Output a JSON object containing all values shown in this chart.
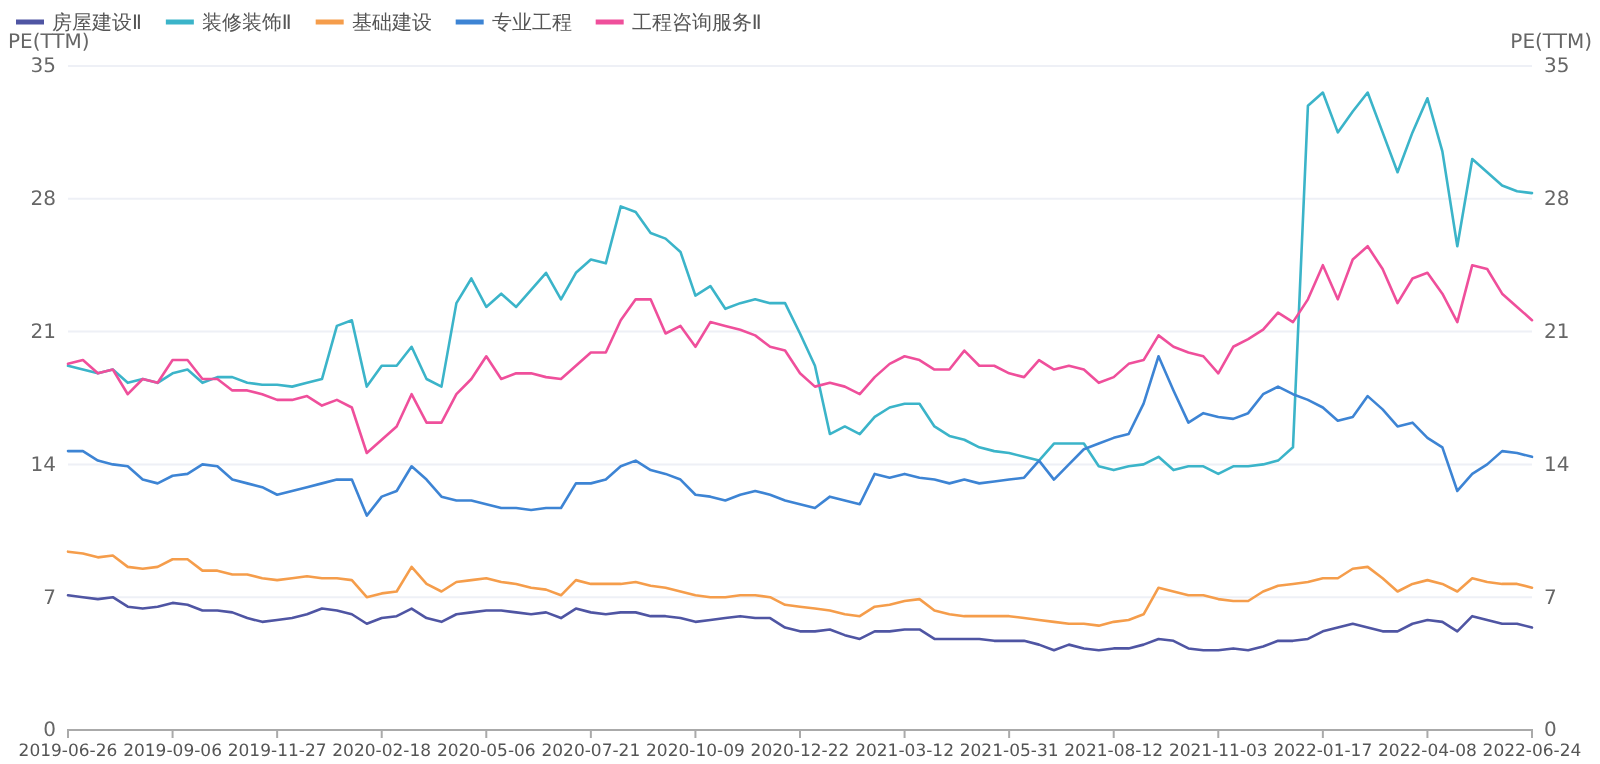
{
  "chart_data": {
    "type": "line",
    "ylabel": "PE(TTM)",
    "y2label": "PE(TTM)",
    "categories": [
      "2019-06-26",
      null,
      null,
      null,
      null,
      null,
      null,
      "2019-09-06",
      null,
      null,
      null,
      null,
      null,
      null,
      "2019-11-27",
      null,
      null,
      null,
      null,
      null,
      null,
      "2020-02-18",
      null,
      null,
      null,
      null,
      null,
      null,
      "2020-05-06",
      null,
      null,
      null,
      null,
      null,
      null,
      "2020-07-21",
      null,
      null,
      null,
      null,
      null,
      null,
      "2020-10-09",
      null,
      null,
      null,
      null,
      null,
      null,
      "2020-12-22",
      null,
      null,
      null,
      null,
      null,
      null,
      "2021-03-12",
      null,
      null,
      null,
      null,
      null,
      null,
      "2021-05-31",
      null,
      null,
      null,
      null,
      null,
      null,
      "2021-08-12",
      null,
      null,
      null,
      null,
      null,
      null,
      "2021-11-03",
      null,
      null,
      null,
      null,
      null,
      null,
      "2022-01-17",
      null,
      null,
      null,
      null,
      null,
      null,
      "2022-04-08",
      null,
      null,
      null,
      null,
      null,
      null,
      "2022-06-24"
    ],
    "ylim": [
      0,
      35
    ],
    "yticks": [
      0,
      7,
      14,
      21,
      28,
      35
    ],
    "y2lim": [
      0,
      35
    ],
    "y2ticks": [
      0,
      7,
      14,
      21,
      28,
      35
    ],
    "grid": "y",
    "legend": "top left",
    "marker": "none",
    "line_style": "solid",
    "series": [
      {
        "name": "房屋建设Ⅱ",
        "color": "#4f55a3",
        "values": [
          7.1,
          7.0,
          6.9,
          7.0,
          6.5,
          6.4,
          6.5,
          6.7,
          6.6,
          6.3,
          6.3,
          6.2,
          5.9,
          5.7,
          5.8,
          5.9,
          6.1,
          6.4,
          6.3,
          6.1,
          5.6,
          5.9,
          6.0,
          6.4,
          5.9,
          5.7,
          6.1,
          6.2,
          6.3,
          6.3,
          6.2,
          6.1,
          6.2,
          5.9,
          6.4,
          6.2,
          6.1,
          6.2,
          6.2,
          6.0,
          6.0,
          5.9,
          5.7,
          5.8,
          5.9,
          6.0,
          5.9,
          5.9,
          5.4,
          5.2,
          5.2,
          5.3,
          5.0,
          4.8,
          5.2,
          5.2,
          5.3,
          5.3,
          4.8,
          4.8,
          4.8,
          4.8,
          4.7,
          4.7,
          4.7,
          4.5,
          4.2,
          4.5,
          4.3,
          4.2,
          4.3,
          4.3,
          4.5,
          4.8,
          4.7,
          4.3,
          4.2,
          4.2,
          4.3,
          4.2,
          4.4,
          4.7,
          4.7,
          4.8,
          5.2,
          5.4,
          5.6,
          5.4,
          5.2,
          5.2,
          5.6,
          5.8,
          5.7,
          5.2,
          6.0,
          5.8,
          5.6,
          5.6,
          5.4
        ]
      },
      {
        "name": "装修装饰Ⅱ",
        "color": "#3bb4c9",
        "values": [
          19.2,
          19.0,
          18.8,
          19.0,
          18.3,
          18.5,
          18.3,
          18.8,
          19.0,
          18.3,
          18.6,
          18.6,
          18.3,
          18.2,
          18.2,
          18.1,
          18.3,
          18.5,
          21.3,
          21.6,
          18.1,
          19.2,
          19.2,
          20.2,
          18.5,
          18.1,
          22.5,
          23.8,
          22.3,
          23.0,
          22.3,
          23.2,
          24.1,
          22.7,
          24.1,
          24.8,
          24.6,
          27.6,
          27.3,
          26.2,
          25.9,
          25.2,
          22.9,
          23.4,
          22.2,
          22.5,
          22.7,
          22.5,
          22.5,
          20.9,
          19.2,
          15.6,
          16.0,
          15.6,
          16.5,
          17.0,
          17.2,
          17.2,
          16.0,
          15.5,
          15.3,
          14.9,
          14.7,
          14.6,
          14.4,
          14.2,
          15.1,
          15.1,
          15.1,
          13.9,
          13.7,
          13.9,
          14.0,
          14.4,
          13.7,
          13.9,
          13.9,
          13.5,
          13.9,
          13.9,
          14.0,
          14.2,
          14.9,
          32.9,
          33.6,
          31.5,
          32.6,
          33.6,
          31.5,
          29.4,
          31.5,
          33.3,
          30.5,
          25.5,
          30.1,
          29.4,
          28.7,
          28.4,
          28.3
        ]
      },
      {
        "name": "基础建设",
        "color": "#f59d4b",
        "values": [
          9.4,
          9.3,
          9.1,
          9.2,
          8.6,
          8.5,
          8.6,
          9.0,
          9.0,
          8.4,
          8.4,
          8.2,
          8.2,
          8.0,
          7.9,
          8.0,
          8.1,
          8.0,
          8.0,
          7.9,
          7.0,
          7.2,
          7.3,
          8.6,
          7.7,
          7.3,
          7.8,
          7.9,
          8.0,
          7.8,
          7.7,
          7.5,
          7.4,
          7.1,
          7.9,
          7.7,
          7.7,
          7.7,
          7.8,
          7.6,
          7.5,
          7.3,
          7.1,
          7.0,
          7.0,
          7.1,
          7.1,
          7.0,
          6.6,
          6.5,
          6.4,
          6.3,
          6.1,
          6.0,
          6.5,
          6.6,
          6.8,
          6.9,
          6.3,
          6.1,
          6.0,
          6.0,
          6.0,
          6.0,
          5.9,
          5.8,
          5.7,
          5.6,
          5.6,
          5.5,
          5.7,
          5.8,
          6.1,
          7.5,
          7.3,
          7.1,
          7.1,
          6.9,
          6.8,
          6.8,
          7.3,
          7.6,
          7.7,
          7.8,
          8.0,
          8.0,
          8.5,
          8.6,
          8.0,
          7.3,
          7.7,
          7.9,
          7.7,
          7.3,
          8.0,
          7.8,
          7.7,
          7.7,
          7.5
        ]
      },
      {
        "name": "专业工程",
        "color": "#3d84d4",
        "values": [
          14.7,
          14.7,
          14.2,
          14.0,
          13.9,
          13.2,
          13.0,
          13.4,
          13.5,
          14.0,
          13.9,
          13.2,
          13.0,
          12.8,
          12.4,
          12.6,
          12.8,
          13.0,
          13.2,
          13.2,
          11.3,
          12.3,
          12.6,
          13.9,
          13.2,
          12.3,
          12.1,
          12.1,
          11.9,
          11.7,
          11.7,
          11.6,
          11.7,
          11.7,
          13.0,
          13.0,
          13.2,
          13.9,
          14.2,
          13.7,
          13.5,
          13.2,
          12.4,
          12.3,
          12.1,
          12.4,
          12.6,
          12.4,
          12.1,
          11.9,
          11.7,
          12.3,
          12.1,
          11.9,
          13.5,
          13.3,
          13.5,
          13.3,
          13.2,
          13.0,
          13.2,
          13.0,
          13.1,
          13.2,
          13.3,
          14.2,
          13.2,
          14.0,
          14.8,
          15.1,
          15.4,
          15.6,
          17.2,
          19.7,
          17.9,
          16.2,
          16.7,
          16.5,
          16.4,
          16.7,
          17.7,
          18.1,
          17.7,
          17.4,
          17.0,
          16.3,
          16.5,
          17.6,
          16.9,
          16.0,
          16.2,
          15.4,
          14.9,
          12.6,
          13.5,
          14.0,
          14.7,
          14.6,
          14.4
        ]
      },
      {
        "name": "工程咨询服务Ⅱ",
        "color": "#ef4f9b",
        "values": [
          19.3,
          19.5,
          18.8,
          19.0,
          17.7,
          18.5,
          18.3,
          19.5,
          19.5,
          18.5,
          18.5,
          17.9,
          17.9,
          17.7,
          17.4,
          17.4,
          17.6,
          17.1,
          17.4,
          17.0,
          14.6,
          15.3,
          16.0,
          17.7,
          16.2,
          16.2,
          17.7,
          18.5,
          19.7,
          18.5,
          18.8,
          18.8,
          18.6,
          18.5,
          19.2,
          19.9,
          19.9,
          21.6,
          22.7,
          22.7,
          20.9,
          21.3,
          20.2,
          21.5,
          21.3,
          21.1,
          20.8,
          20.2,
          20.0,
          18.8,
          18.1,
          18.3,
          18.1,
          17.7,
          18.6,
          19.3,
          19.7,
          19.5,
          19.0,
          19.0,
          20.0,
          19.2,
          19.2,
          18.8,
          18.6,
          19.5,
          19.0,
          19.2,
          19.0,
          18.3,
          18.6,
          19.3,
          19.5,
          20.8,
          20.2,
          19.9,
          19.7,
          18.8,
          20.2,
          20.6,
          21.1,
          22.0,
          21.5,
          22.7,
          24.5,
          22.7,
          24.8,
          25.5,
          24.3,
          22.5,
          23.8,
          24.1,
          23.0,
          21.5,
          24.5,
          24.3,
          23.0,
          22.3,
          21.6
        ]
      }
    ]
  }
}
